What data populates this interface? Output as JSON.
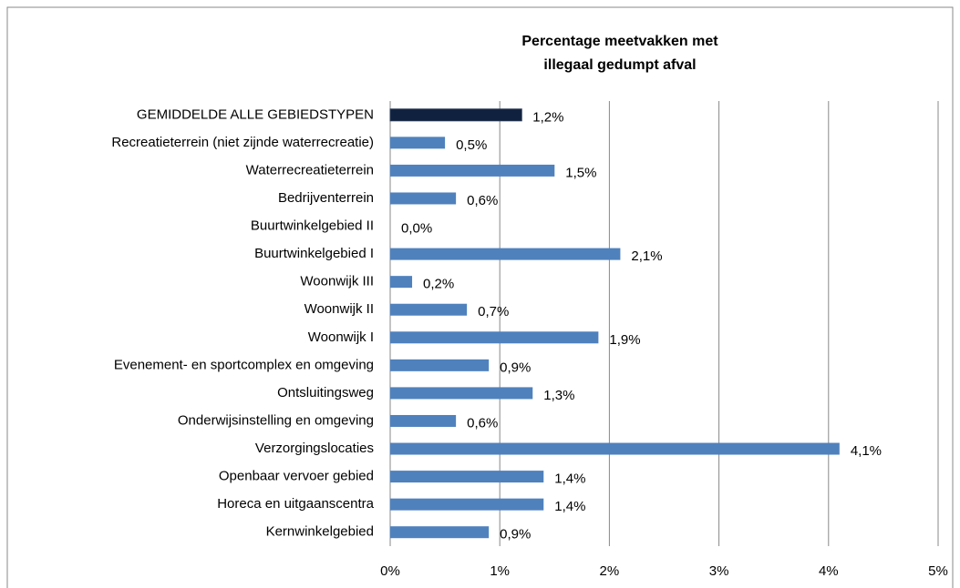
{
  "chart_data": {
    "type": "barh",
    "title": [
      "Percentage meetvakken met",
      "illegaal gedumpt afval"
    ],
    "categories": [
      "GEMIDDELDE ALLE GEBIEDSTYPEN",
      "Recreatieterrein (niet zijnde waterrecreatie)",
      "Waterrecreatieterrein",
      "Bedrijventerrein",
      "Buurtwinkelgebied II",
      "Buurtwinkelgebied I",
      "Woonwijk III",
      "Woonwijk II",
      "Woonwijk I",
      "Evenement- en sportcomplex en omgeving",
      "Ontsluitingsweg",
      "Onderwijsinstelling en omgeving",
      "Verzorgingslocaties",
      "Openbaar vervoer gebied",
      "Horeca en uitgaanscentra",
      "Kernwinkelgebied"
    ],
    "values": [
      1.2,
      0.5,
      1.5,
      0.6,
      0.0,
      2.1,
      0.2,
      0.7,
      1.9,
      0.9,
      1.3,
      0.6,
      4.1,
      1.4,
      1.4,
      0.9
    ],
    "value_labels": [
      "1,2%",
      "0,5%",
      "1,5%",
      "0,6%",
      "0,0%",
      "2,1%",
      "0,2%",
      "0,7%",
      "1,9%",
      "0,9%",
      "1,3%",
      "0,6%",
      "4,1%",
      "1,4%",
      "1,4%",
      "0,9%"
    ],
    "colors": [
      "#0f213f",
      "#4f81bd",
      "#4f81bd",
      "#4f81bd",
      "#4f81bd",
      "#4f81bd",
      "#4f81bd",
      "#4f81bd",
      "#4f81bd",
      "#4f81bd",
      "#4f81bd",
      "#4f81bd",
      "#4f81bd",
      "#4f81bd",
      "#4f81bd",
      "#4f81bd"
    ],
    "xlim": [
      0,
      5
    ],
    "xticks": [
      {
        "value": 0,
        "label": "0%"
      },
      {
        "value": 1,
        "label": "1%"
      },
      {
        "value": 2,
        "label": "2%"
      },
      {
        "value": 3,
        "label": "3%"
      },
      {
        "value": 4,
        "label": "4%"
      },
      {
        "value": 5,
        "label": "5%"
      }
    ],
    "grid": true
  }
}
